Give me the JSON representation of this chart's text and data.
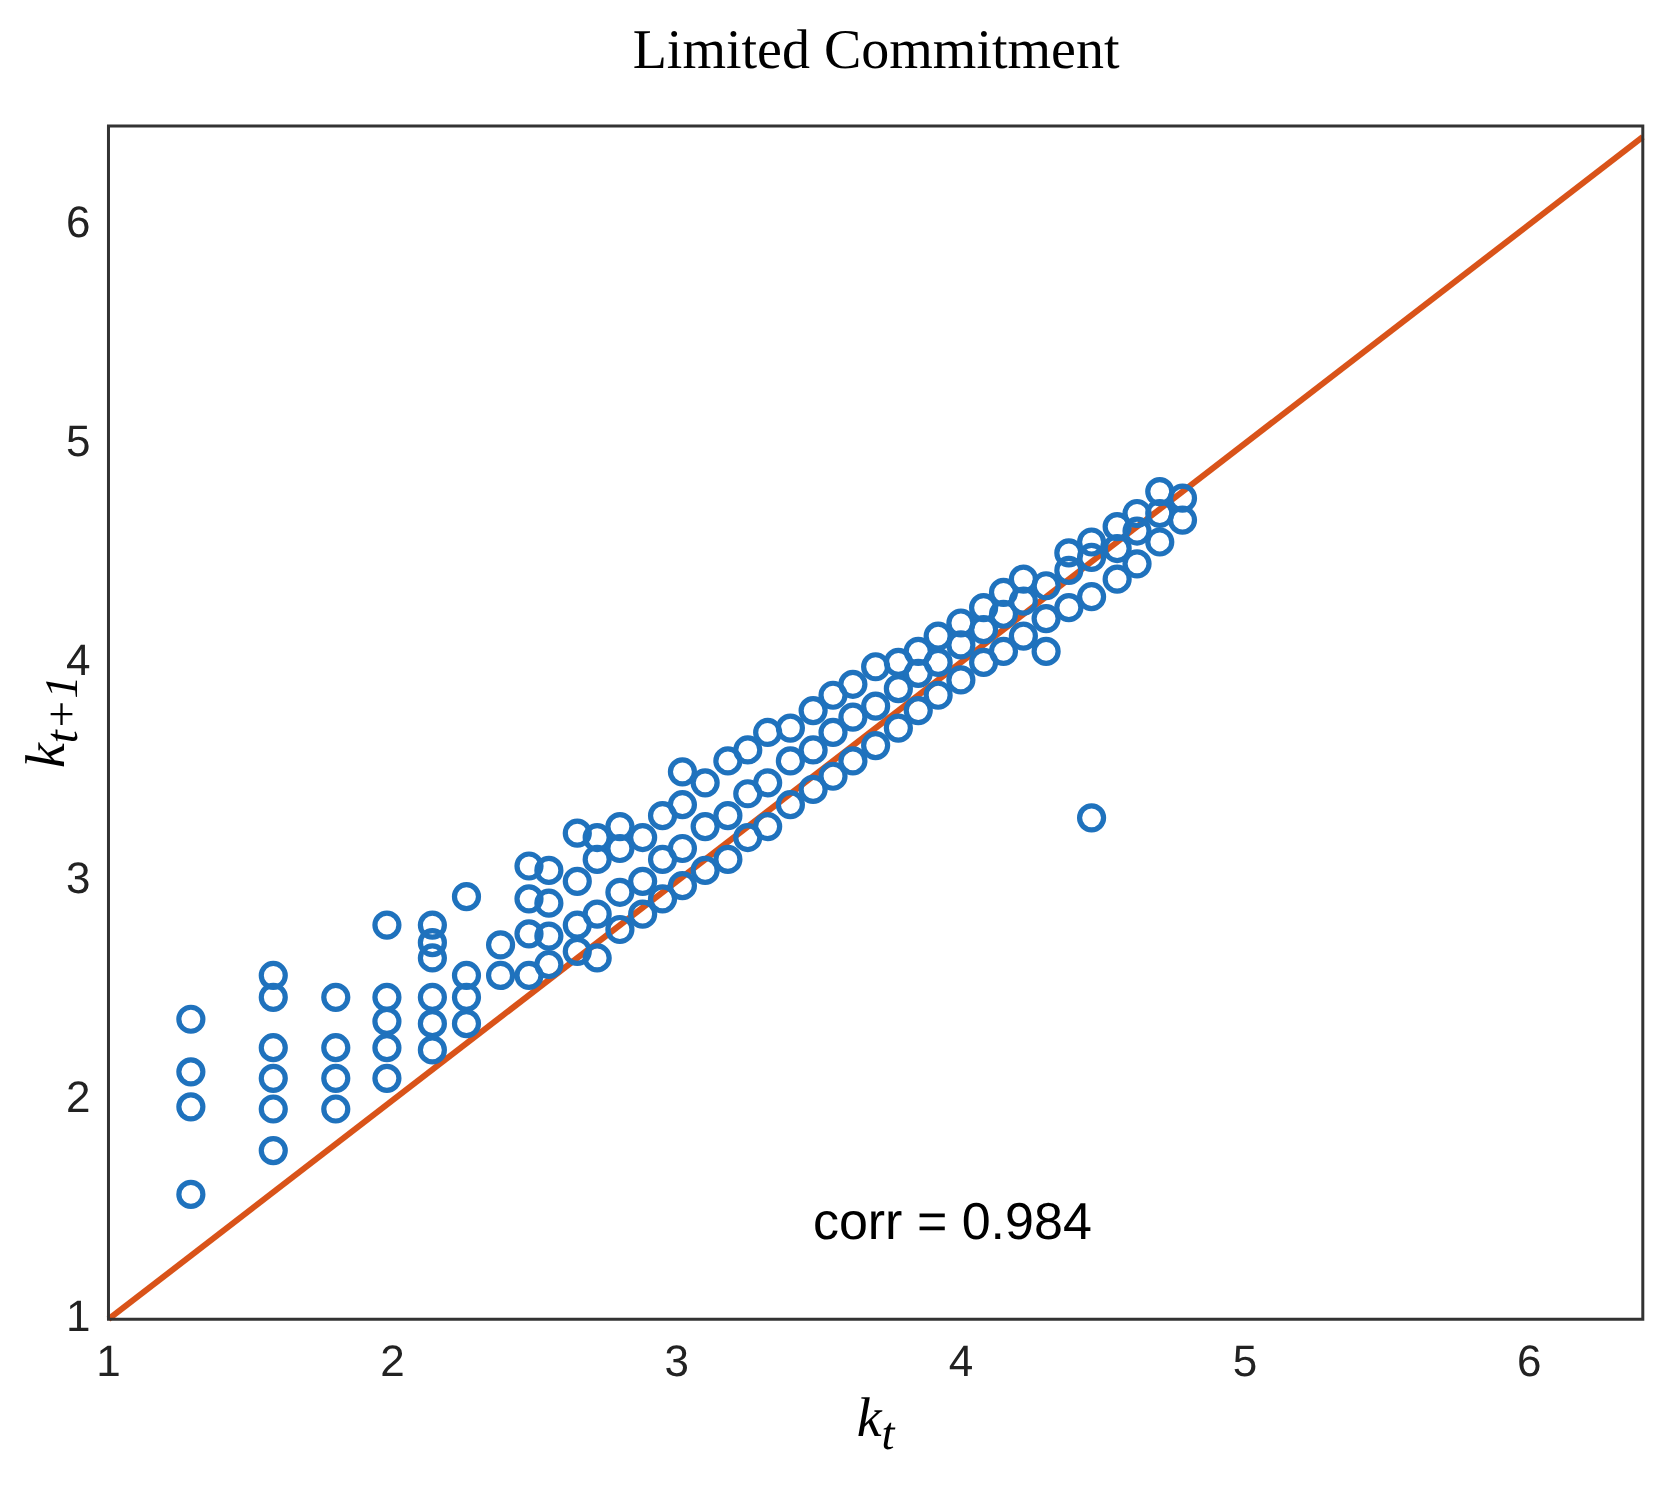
{
  "chart_data": {
    "type": "scatter",
    "title": "Limited Commitment",
    "xlabel": "k$_{t}$",
    "ylabel": "k$_{t+1}$",
    "xlim": [
      1,
      6.4
    ],
    "ylim": [
      1,
      6.45
    ],
    "xticks": [
      1,
      2,
      3,
      4,
      5,
      6
    ],
    "yticks": [
      1,
      2,
      3,
      4,
      5,
      6
    ],
    "grid": false,
    "legend": false,
    "marker": "circle",
    "annotations": [
      "corr = 0.984"
    ],
    "series": [
      {
        "type": "scatter",
        "color": "#1f72bd",
        "x": [
          1.29,
          1.29,
          1.29,
          1.29,
          1.58,
          1.58,
          1.58,
          1.58,
          1.58,
          1.58,
          1.8,
          1.8,
          1.8,
          1.8,
          1.98,
          1.98,
          1.98,
          1.98,
          1.98,
          2.14,
          2.14,
          2.14,
          2.14,
          2.14,
          2.14,
          2.26,
          2.26,
          2.26,
          2.26,
          2.38,
          2.38,
          2.48,
          2.48,
          2.48,
          2.48,
          2.55,
          2.55,
          2.55,
          2.55,
          2.65,
          2.65,
          2.65,
          2.65,
          2.72,
          2.72,
          2.72,
          2.72,
          2.8,
          2.8,
          2.8,
          2.8,
          2.88,
          2.88,
          2.88,
          2.95,
          2.95,
          2.95,
          3.02,
          3.02,
          3.02,
          3.02,
          3.1,
          3.1,
          3.1,
          3.18,
          3.18,
          3.18,
          3.25,
          3.25,
          3.25,
          3.32,
          3.32,
          3.32,
          3.4,
          3.4,
          3.4,
          3.48,
          3.48,
          3.48,
          3.55,
          3.55,
          3.55,
          3.62,
          3.62,
          3.62,
          3.7,
          3.7,
          3.7,
          3.78,
          3.78,
          3.78,
          3.85,
          3.85,
          3.85,
          3.92,
          3.92,
          3.92,
          4.0,
          4.0,
          4.0,
          4.08,
          4.08,
          4.08,
          4.15,
          4.15,
          4.15,
          4.22,
          4.22,
          4.22,
          4.3,
          4.3,
          4.3,
          4.38,
          4.38,
          4.38,
          4.46,
          4.46,
          4.46,
          4.55,
          4.55,
          4.55,
          4.62,
          4.62,
          4.62,
          4.7,
          4.7,
          4.7,
          4.78,
          4.78,
          4.46
        ],
        "values": [
          2.37,
          2.13,
          1.97,
          1.57,
          2.57,
          2.47,
          2.24,
          2.1,
          1.96,
          1.77,
          2.47,
          2.24,
          2.1,
          1.96,
          2.8,
          2.47,
          2.36,
          2.24,
          2.1,
          2.8,
          2.72,
          2.65,
          2.47,
          2.35,
          2.23,
          2.93,
          2.57,
          2.47,
          2.35,
          2.71,
          2.57,
          3.07,
          2.92,
          2.76,
          2.57,
          2.62,
          2.75,
          2.9,
          3.05,
          2.68,
          2.8,
          3.0,
          3.22,
          2.65,
          2.85,
          3.1,
          3.2,
          2.78,
          2.95,
          3.15,
          3.25,
          2.85,
          3.0,
          3.2,
          2.92,
          3.1,
          3.3,
          2.98,
          3.15,
          3.35,
          3.5,
          3.05,
          3.25,
          3.45,
          3.1,
          3.3,
          3.55,
          3.2,
          3.4,
          3.6,
          3.25,
          3.45,
          3.68,
          3.35,
          3.55,
          3.7,
          3.42,
          3.6,
          3.78,
          3.48,
          3.68,
          3.85,
          3.55,
          3.75,
          3.9,
          3.62,
          3.8,
          3.98,
          3.7,
          3.88,
          4.0,
          3.78,
          3.95,
          4.05,
          3.85,
          4.0,
          4.12,
          3.92,
          4.08,
          4.18,
          4.0,
          4.15,
          4.25,
          4.05,
          4.22,
          4.32,
          4.12,
          4.28,
          4.38,
          4.05,
          4.2,
          4.35,
          4.25,
          4.42,
          4.5,
          4.3,
          4.48,
          4.55,
          4.38,
          4.52,
          4.62,
          4.45,
          4.6,
          4.68,
          4.55,
          4.68,
          4.78,
          4.65,
          4.75,
          3.29
        ]
      },
      {
        "type": "line",
        "color": "#d95319",
        "marker": "none",
        "x": [
          1,
          6.4
        ],
        "values": [
          1,
          6.4
        ]
      }
    ]
  }
}
